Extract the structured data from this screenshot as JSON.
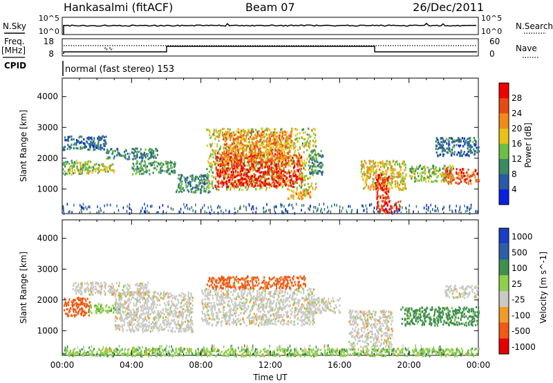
{
  "header": {
    "station": "Hankasalmi (fitACF)",
    "beam": "Beam 07",
    "date": "26/Dec/2011"
  },
  "noise_panel": {
    "left_label": "N.Sky",
    "right_label": "N.Search",
    "left_ticks": [
      "10^5",
      "10^0"
    ],
    "right_ticks": [
      "10^5",
      "10^0"
    ]
  },
  "freq_panel": {
    "left_label_1": "Freq.",
    "left_label_2": "[MHz]",
    "left_ticks": [
      "18",
      "8"
    ],
    "right_label": "Nave",
    "right_ticks": [
      "60",
      "0"
    ]
  },
  "cpid": {
    "label": "CPID",
    "mode": "normal (fast stereo) 153"
  },
  "colors": {
    "power": [
      "#0a1fe0",
      "#2a5aa6",
      "#3a8a66",
      "#6fbf44",
      "#e8c21a",
      "#f08a1a",
      "#e84a14",
      "#f00000"
    ],
    "velocity": [
      "#e60000",
      "#f05a14",
      "#f49a2a",
      "#c9c9c5",
      "#8ed04c",
      "#3f8f4d",
      "#2d5ea6",
      "#1a3fc4"
    ]
  },
  "chart_data": [
    {
      "type": "heatmap",
      "panel": "power",
      "ylabel": "Slant Range [km]",
      "ylim": [
        200,
        4600
      ],
      "yticks": [
        "1000",
        "2000",
        "3000",
        "4000"
      ],
      "xlim": [
        0,
        24
      ],
      "colorbar_label": "Power [dB]",
      "colorbar_ticks": [
        "4",
        "8",
        "12",
        "16",
        "20",
        "24",
        "28"
      ],
      "regions": [
        {
          "x": [
            0.0,
            1.6
          ],
          "y": [
            1500,
            1950
          ],
          "value": 14
        },
        {
          "x": [
            0.0,
            2.5
          ],
          "y": [
            2300,
            2750
          ],
          "value": 8
        },
        {
          "x": [
            1.0,
            3.0
          ],
          "y": [
            1550,
            1850
          ],
          "value": 16
        },
        {
          "x": [
            2.5,
            5.5
          ],
          "y": [
            2000,
            2350
          ],
          "value": 9
        },
        {
          "x": [
            4.0,
            6.5
          ],
          "y": [
            1500,
            1950
          ],
          "value": 11
        },
        {
          "x": [
            6.5,
            8.5
          ],
          "y": [
            900,
            1500
          ],
          "value": 10
        },
        {
          "x": [
            8.3,
            14.6
          ],
          "y": [
            1000,
            3000
          ],
          "value": 16
        },
        {
          "x": [
            8.8,
            13.8
          ],
          "y": [
            1100,
            2200
          ],
          "value": 28
        },
        {
          "x": [
            9.2,
            13.2
          ],
          "y": [
            1900,
            2900
          ],
          "value": 22
        },
        {
          "x": [
            13.0,
            14.3
          ],
          "y": [
            700,
            1000
          ],
          "value": 20
        },
        {
          "x": [
            14.2,
            15.0
          ],
          "y": [
            1500,
            2300
          ],
          "value": 10
        },
        {
          "x": [
            17.2,
            19.8
          ],
          "y": [
            1000,
            1950
          ],
          "value": 18
        },
        {
          "x": [
            18.0,
            18.8
          ],
          "y": [
            700,
            1500
          ],
          "value": 28
        },
        {
          "x": [
            18.1,
            19.5
          ],
          "y": [
            250,
            650
          ],
          "value": 28
        },
        {
          "x": [
            20.0,
            22.5
          ],
          "y": [
            1250,
            1800
          ],
          "value": 14
        },
        {
          "x": [
            22.0,
            24.0
          ],
          "y": [
            1200,
            1700
          ],
          "value": 26
        },
        {
          "x": [
            21.5,
            24.0
          ],
          "y": [
            2100,
            2700
          ],
          "value": 8
        }
      ]
    },
    {
      "type": "heatmap",
      "panel": "velocity",
      "ylabel": "Slant Range [km]",
      "ylim": [
        200,
        4600
      ],
      "yticks": [
        "1000",
        "2000",
        "3000",
        "4000"
      ],
      "xlim": [
        0,
        24
      ],
      "xticks": [
        "00:00",
        "04:00",
        "08:00",
        "12:00",
        "16:00",
        "20:00",
        "00:00"
      ],
      "xlabel": "Time UT",
      "colorbar_label": "Velocity [m s^-1]",
      "colorbar_ticks": [
        "1000",
        "500",
        "100",
        "25",
        "-25",
        "-100",
        "-500",
        "-1000"
      ],
      "regions": [
        {
          "x": [
            0.0,
            1.6
          ],
          "y": [
            1500,
            2100
          ],
          "value": -300
        },
        {
          "x": [
            1.5,
            3.5
          ],
          "y": [
            1600,
            1900
          ],
          "value": 80
        },
        {
          "x": [
            0.5,
            5.0
          ],
          "y": [
            2200,
            2600
          ],
          "value": 0
        },
        {
          "x": [
            3.0,
            7.5
          ],
          "y": [
            1000,
            2300
          ],
          "value": 0
        },
        {
          "x": [
            8.0,
            14.5
          ],
          "y": [
            1200,
            2400
          ],
          "value": 0
        },
        {
          "x": [
            8.3,
            14.0
          ],
          "y": [
            2400,
            2800
          ],
          "value": -150
        },
        {
          "x": [
            14.0,
            16.0
          ],
          "y": [
            1600,
            2100
          ],
          "value": 0
        },
        {
          "x": [
            16.5,
            19.0
          ],
          "y": [
            500,
            1700
          ],
          "value": 0
        },
        {
          "x": [
            19.5,
            24.0
          ],
          "y": [
            1200,
            1800
          ],
          "value": 150
        },
        {
          "x": [
            22.0,
            24.0
          ],
          "y": [
            2100,
            2500
          ],
          "value": 0
        },
        {
          "x": [
            0.0,
            24.0
          ],
          "y": [
            200,
            450
          ],
          "value": 80
        }
      ]
    }
  ]
}
